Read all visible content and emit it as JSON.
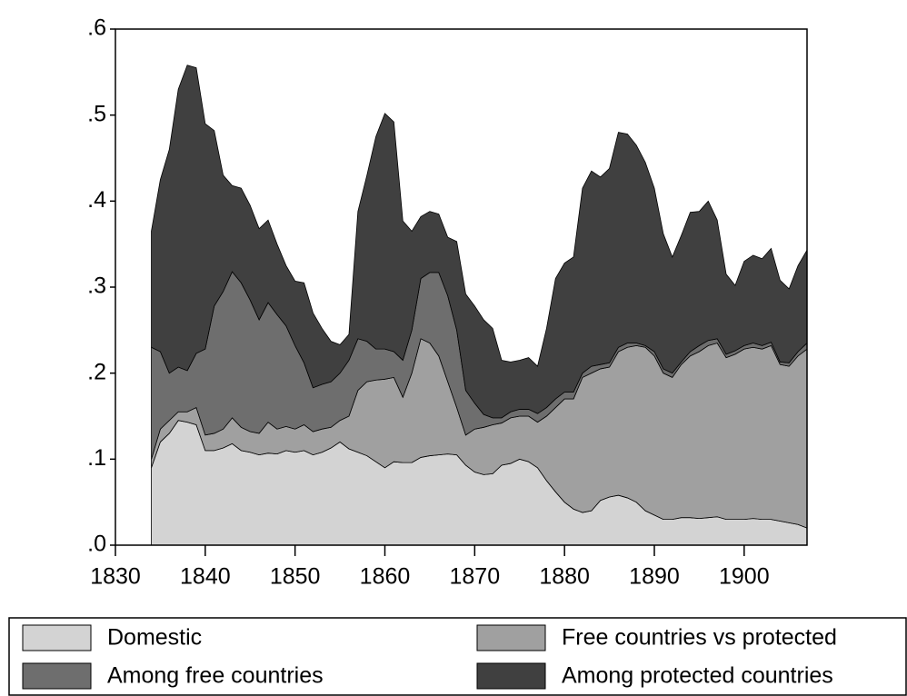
{
  "chart_data": {
    "type": "stacked-area",
    "x": [
      1834,
      1835,
      1836,
      1837,
      1838,
      1839,
      1840,
      1841,
      1842,
      1843,
      1844,
      1845,
      1846,
      1847,
      1848,
      1849,
      1850,
      1851,
      1852,
      1853,
      1854,
      1855,
      1856,
      1857,
      1858,
      1859,
      1860,
      1861,
      1862,
      1863,
      1864,
      1865,
      1866,
      1867,
      1868,
      1869,
      1870,
      1871,
      1872,
      1873,
      1874,
      1875,
      1876,
      1877,
      1878,
      1879,
      1880,
      1881,
      1882,
      1883,
      1884,
      1885,
      1886,
      1887,
      1888,
      1889,
      1890,
      1891,
      1892,
      1893,
      1894,
      1895,
      1896,
      1897,
      1898,
      1899,
      1900,
      1901,
      1902,
      1903,
      1904,
      1905,
      1906,
      1907
    ],
    "series": [
      {
        "name": "Domestic",
        "color": "#d3d3d3",
        "values": [
          0.09,
          0.12,
          0.13,
          0.145,
          0.143,
          0.14,
          0.11,
          0.11,
          0.113,
          0.118,
          0.11,
          0.108,
          0.105,
          0.107,
          0.106,
          0.11,
          0.108,
          0.11,
          0.105,
          0.108,
          0.113,
          0.12,
          0.112,
          0.108,
          0.104,
          0.097,
          0.09,
          0.097,
          0.096,
          0.096,
          0.102,
          0.104,
          0.105,
          0.106,
          0.105,
          0.093,
          0.085,
          0.082,
          0.083,
          0.093,
          0.095,
          0.1,
          0.097,
          0.09,
          0.075,
          0.062,
          0.05,
          0.042,
          0.038,
          0.04,
          0.052,
          0.056,
          0.058,
          0.055,
          0.05,
          0.04,
          0.035,
          0.03,
          0.03,
          0.032,
          0.032,
          0.031,
          0.032,
          0.033,
          0.03,
          0.03,
          0.03,
          0.031,
          0.03,
          0.03,
          0.028,
          0.026,
          0.024,
          0.02
        ]
      },
      {
        "name": "Free countries vs protected",
        "color": "#a0a0a0",
        "values": [
          0.01,
          0.015,
          0.015,
          0.01,
          0.012,
          0.02,
          0.018,
          0.02,
          0.022,
          0.03,
          0.027,
          0.024,
          0.025,
          0.036,
          0.029,
          0.028,
          0.027,
          0.03,
          0.027,
          0.027,
          0.024,
          0.025,
          0.038,
          0.072,
          0.086,
          0.095,
          0.103,
          0.098,
          0.076,
          0.104,
          0.138,
          0.131,
          0.115,
          0.084,
          0.055,
          0.035,
          0.05,
          0.055,
          0.057,
          0.049,
          0.053,
          0.05,
          0.053,
          0.053,
          0.075,
          0.098,
          0.12,
          0.128,
          0.157,
          0.16,
          0.153,
          0.151,
          0.167,
          0.175,
          0.182,
          0.19,
          0.185,
          0.17,
          0.165,
          0.178,
          0.188,
          0.194,
          0.2,
          0.202,
          0.188,
          0.192,
          0.198,
          0.199,
          0.198,
          0.202,
          0.182,
          0.182,
          0.196,
          0.208
        ]
      },
      {
        "name": "Among free countries",
        "color": "#6e6e6e",
        "values": [
          0.13,
          0.09,
          0.055,
          0.052,
          0.048,
          0.063,
          0.1,
          0.148,
          0.16,
          0.17,
          0.168,
          0.153,
          0.132,
          0.139,
          0.133,
          0.117,
          0.097,
          0.072,
          0.051,
          0.052,
          0.053,
          0.055,
          0.065,
          0.06,
          0.047,
          0.036,
          0.035,
          0.03,
          0.043,
          0.05,
          0.07,
          0.082,
          0.097,
          0.1,
          0.09,
          0.052,
          0.03,
          0.015,
          0.008,
          0.006,
          0.007,
          0.008,
          0.008,
          0.01,
          0.01,
          0.01,
          0.008,
          0.008,
          0.005,
          0.008,
          0.005,
          0.005,
          0.005,
          0.005,
          0.003,
          0.002,
          0.005,
          0.005,
          0.005,
          0.003,
          0.005,
          0.007,
          0.006,
          0.005,
          0.004,
          0.004,
          0.004,
          0.005,
          0.004,
          0.004,
          0.003,
          0.004,
          0.005,
          0.007
        ]
      },
      {
        "name": "Among protected countries",
        "color": "#404040",
        "values": [
          0.135,
          0.2,
          0.26,
          0.323,
          0.355,
          0.332,
          0.262,
          0.204,
          0.135,
          0.1,
          0.11,
          0.11,
          0.106,
          0.096,
          0.082,
          0.07,
          0.075,
          0.093,
          0.087,
          0.065,
          0.047,
          0.033,
          0.03,
          0.148,
          0.193,
          0.247,
          0.274,
          0.267,
          0.162,
          0.115,
          0.072,
          0.071,
          0.068,
          0.068,
          0.103,
          0.112,
          0.113,
          0.11,
          0.104,
          0.067,
          0.058,
          0.057,
          0.06,
          0.055,
          0.092,
          0.14,
          0.15,
          0.157,
          0.215,
          0.227,
          0.218,
          0.226,
          0.25,
          0.243,
          0.23,
          0.213,
          0.19,
          0.157,
          0.135,
          0.147,
          0.162,
          0.156,
          0.162,
          0.138,
          0.093,
          0.076,
          0.098,
          0.102,
          0.101,
          0.109,
          0.095,
          0.086,
          0.1,
          0.108
        ]
      }
    ],
    "xlim": [
      1830,
      1907
    ],
    "xticks": [
      1830,
      1840,
      1850,
      1860,
      1870,
      1880,
      1890,
      1900
    ],
    "ylim": [
      0,
      0.6
    ],
    "yticks": [
      {
        "value": 0,
        "label": ".0"
      },
      {
        "value": 0.1,
        "label": ".1"
      },
      {
        "value": 0.2,
        "label": ".2"
      },
      {
        "value": 0.3,
        "label": ".3"
      },
      {
        "value": 0.4,
        "label": ".4"
      },
      {
        "value": 0.5,
        "label": ".5"
      },
      {
        "value": 0.6,
        "label": ".6"
      }
    ]
  }
}
